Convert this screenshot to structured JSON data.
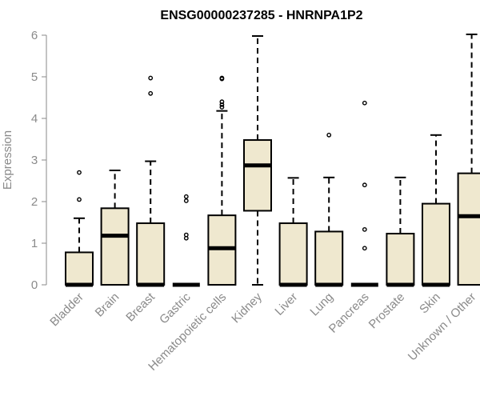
{
  "chart_data": {
    "type": "boxplot",
    "title": "ENSG00000237285 - HNRNPA1P2",
    "ylabel": "Expression",
    "xlabel": "",
    "ylim": [
      0,
      6
    ],
    "yticks": [
      "0",
      "1",
      "2",
      "3",
      "4",
      "5",
      "6"
    ],
    "grid": false,
    "box_color": "#efe8cf",
    "categories": [
      "Bladder",
      "Brain",
      "Breast",
      "Gastric",
      "Hematopoietic cells",
      "Kidney",
      "Liver",
      "Lung",
      "Pancreas",
      "Prostate",
      "Skin",
      "Unknown / Other"
    ],
    "series": [
      {
        "whisker_low": 0,
        "q1": 0,
        "median": 0,
        "q3": 0.78,
        "whisker_high": 1.6,
        "outliers": [
          2.05,
          2.7
        ]
      },
      {
        "whisker_low": 0,
        "q1": 0,
        "median": 1.18,
        "q3": 1.84,
        "whisker_high": 2.75,
        "outliers": []
      },
      {
        "whisker_low": 0,
        "q1": 0,
        "median": 0,
        "q3": 1.48,
        "whisker_high": 2.97,
        "outliers": [
          4.6,
          4.97
        ]
      },
      {
        "whisker_low": 0,
        "q1": 0,
        "median": 0,
        "q3": 0,
        "whisker_high": 0,
        "outliers": [
          1.12,
          1.2,
          2.02,
          2.12
        ]
      },
      {
        "whisker_low": 0,
        "q1": 0,
        "median": 0.88,
        "q3": 1.67,
        "whisker_high": 4.18,
        "outliers": [
          4.27,
          4.33,
          4.4,
          4.95,
          4.97
        ]
      },
      {
        "whisker_low": 0,
        "q1": 1.78,
        "median": 2.87,
        "q3": 3.48,
        "whisker_high": 5.98,
        "outliers": []
      },
      {
        "whisker_low": 0,
        "q1": 0,
        "median": 0,
        "q3": 1.48,
        "whisker_high": 2.57,
        "outliers": []
      },
      {
        "whisker_low": 0,
        "q1": 0,
        "median": 0,
        "q3": 1.28,
        "whisker_high": 2.58,
        "outliers": [
          3.6
        ]
      },
      {
        "whisker_low": 0,
        "q1": 0,
        "median": 0,
        "q3": 0,
        "whisker_high": 0,
        "outliers": [
          0.88,
          1.33,
          2.4,
          4.37
        ]
      },
      {
        "whisker_low": 0,
        "q1": 0,
        "median": 0,
        "q3": 1.23,
        "whisker_high": 2.58,
        "outliers": []
      },
      {
        "whisker_low": 0,
        "q1": 0,
        "median": 0,
        "q3": 1.95,
        "whisker_high": 3.6,
        "outliers": []
      },
      {
        "whisker_low": 0,
        "q1": 0,
        "median": 1.65,
        "q3": 2.68,
        "whisker_high": 6.02,
        "outliers": []
      }
    ]
  }
}
